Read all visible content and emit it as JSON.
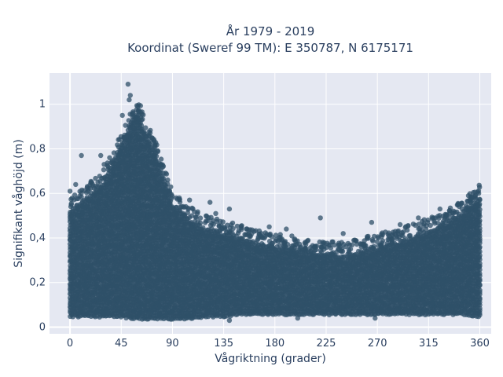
{
  "chart_data": {
    "type": "scatter",
    "title": [
      "År 1979 - 2019",
      "Koordinat (Sweref 99 TM): E 350787, N 6175171"
    ],
    "xlabel": "Vågriktning (grader)",
    "ylabel": "Signifikant våghöjd (m)",
    "xlim": [
      -18,
      370
    ],
    "ylim": [
      -0.03,
      1.14
    ],
    "x_ticks": [
      0,
      45,
      90,
      135,
      180,
      225,
      270,
      315,
      360
    ],
    "x_tick_labels": [
      "0",
      "45",
      "90",
      "135",
      "180",
      "225",
      "270",
      "315",
      "360"
    ],
    "y_ticks": [
      0,
      0.2,
      0.4,
      0.6,
      0.8,
      1
    ],
    "y_tick_labels": [
      "0",
      "0,2",
      "0,4",
      "0,6",
      "0,8",
      "1"
    ],
    "grid": true,
    "marker_color": "#2f5068",
    "plot_bg": "#e5e8f2",
    "series_envelope": {
      "x": [
        0,
        15,
        30,
        45,
        55,
        60,
        65,
        75,
        90,
        105,
        120,
        135,
        150,
        180,
        210,
        240,
        270,
        300,
        330,
        345,
        360
      ],
      "ymin": [
        0.05,
        0.05,
        0.05,
        0.05,
        0.04,
        0.04,
        0.04,
        0.04,
        0.04,
        0.04,
        0.05,
        0.05,
        0.06,
        0.06,
        0.06,
        0.06,
        0.06,
        0.06,
        0.06,
        0.06,
        0.05
      ],
      "ymax": [
        0.52,
        0.58,
        0.65,
        0.82,
        0.93,
        0.97,
        0.88,
        0.78,
        0.55,
        0.48,
        0.44,
        0.42,
        0.4,
        0.36,
        0.34,
        0.32,
        0.36,
        0.4,
        0.46,
        0.52,
        0.58
      ]
    },
    "outliers": [
      {
        "x": 51,
        "y": 1.09
      },
      {
        "x": 53,
        "y": 1.04
      },
      {
        "x": 52,
        "y": 1.02
      },
      {
        "x": 46,
        "y": 0.95
      },
      {
        "x": 58,
        "y": 0.94
      },
      {
        "x": 60,
        "y": 0.97
      },
      {
        "x": 10,
        "y": 0.77
      },
      {
        "x": 27,
        "y": 0.77
      },
      {
        "x": 30,
        "y": 0.73
      },
      {
        "x": 0,
        "y": 0.61
      },
      {
        "x": 5,
        "y": 0.64
      },
      {
        "x": 105,
        "y": 0.57
      },
      {
        "x": 123,
        "y": 0.56
      },
      {
        "x": 140,
        "y": 0.53
      },
      {
        "x": 128,
        "y": 0.51
      },
      {
        "x": 220,
        "y": 0.49
      },
      {
        "x": 325,
        "y": 0.53
      },
      {
        "x": 350,
        "y": 0.59
      },
      {
        "x": 359,
        "y": 0.6
      },
      {
        "x": 343,
        "y": 0.55
      },
      {
        "x": 306,
        "y": 0.49
      },
      {
        "x": 265,
        "y": 0.47
      },
      {
        "x": 175,
        "y": 0.45
      },
      {
        "x": 190,
        "y": 0.44
      },
      {
        "x": 155,
        "y": 0.44
      },
      {
        "x": 240,
        "y": 0.42
      },
      {
        "x": 290,
        "y": 0.46
      },
      {
        "x": 200,
        "y": 0.04
      },
      {
        "x": 268,
        "y": 0.04
      },
      {
        "x": 140,
        "y": 0.03
      }
    ]
  }
}
